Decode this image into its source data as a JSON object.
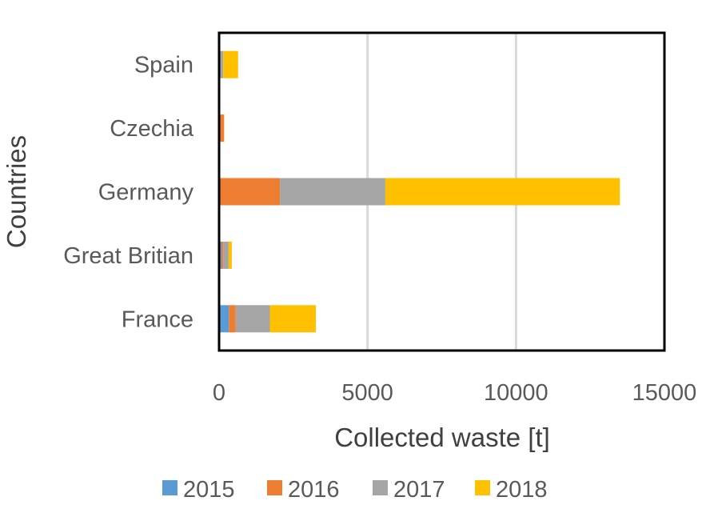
{
  "chart_data": {
    "type": "bar",
    "orientation": "horizontal",
    "stacked": true,
    "categories": [
      "France",
      "Great Britian",
      "Germany",
      "Czechia",
      "Spain"
    ],
    "series": [
      {
        "name": "2015",
        "color": "#5B9BD5",
        "values": [
          330,
          80,
          0,
          0,
          0
        ]
      },
      {
        "name": "2016",
        "color": "#ED7D31",
        "values": [
          230,
          60,
          2050,
          170,
          0
        ]
      },
      {
        "name": "2017",
        "color": "#A5A5A5",
        "values": [
          1150,
          180,
          3550,
          0,
          140
        ]
      },
      {
        "name": "2018",
        "color": "#FFC000",
        "values": [
          1550,
          110,
          7900,
          0,
          500
        ]
      }
    ],
    "xlabel": "Collected waste [t]",
    "ylabel": "Countries",
    "xlim": [
      0,
      15000
    ],
    "xticks": [
      "0",
      "5000",
      "10000",
      "15000"
    ],
    "tick_values": [
      0,
      5000,
      10000,
      15000
    ],
    "grid": "vertical",
    "legend_position": "bottom"
  }
}
